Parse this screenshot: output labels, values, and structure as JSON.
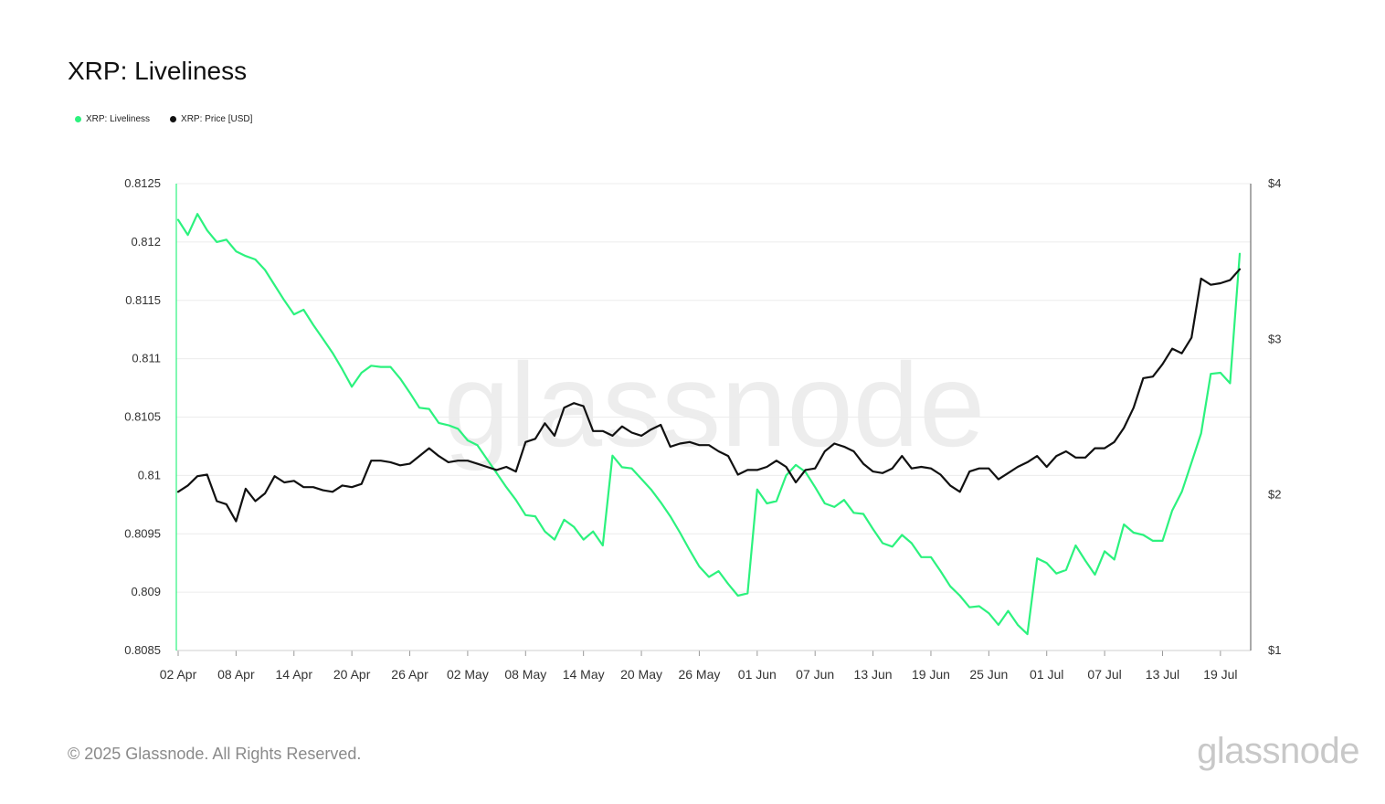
{
  "title": "XRP: Liveliness",
  "legend": [
    {
      "label": "XRP: Liveliness",
      "color": "#2cf27e"
    },
    {
      "label": "XRP: Price [USD]",
      "color": "#111111"
    }
  ],
  "footer": "© 2025 Glassnode. All Rights Reserved.",
  "brand": "glassnode",
  "watermark": "glassnode",
  "chart_data": {
    "type": "line",
    "x_ticks": [
      "02 Apr",
      "08 Apr",
      "14 Apr",
      "20 Apr",
      "26 Apr",
      "02 May",
      "08 May",
      "14 May",
      "20 May",
      "26 May",
      "01 Jun",
      "07 Jun",
      "13 Jun",
      "19 Jun",
      "25 Jun",
      "01 Jul",
      "07 Jul",
      "13 Jul",
      "19 Jul"
    ],
    "x_tick_offsets_days": [
      0,
      6,
      12,
      18,
      24,
      30,
      36,
      42,
      48,
      54,
      60,
      66,
      72,
      78,
      84,
      90,
      96,
      102,
      108
    ],
    "x_start": "2025-04-02",
    "x_days": 111,
    "y_left": {
      "ylim": [
        0.8085,
        0.8125
      ],
      "ticks": [
        "0.8085",
        "0.809",
        "0.8095",
        "0.81",
        "0.8105",
        "0.811",
        "0.8115",
        "0.812",
        "0.8125"
      ],
      "tick_values": [
        0.8085,
        0.809,
        0.8095,
        0.81,
        0.8105,
        0.811,
        0.8115,
        0.812,
        0.8125
      ]
    },
    "y_right": {
      "ylim": [
        1,
        4
      ],
      "ticks": [
        "$1",
        "$2",
        "$3",
        "$4"
      ],
      "tick_values": [
        1,
        2,
        3,
        4
      ]
    },
    "grid": true,
    "series": [
      {
        "name": "XRP: Liveliness",
        "axis": "left",
        "color": "#2cf27e",
        "values": [
          0.81219,
          0.81206,
          0.81224,
          0.8121,
          0.812,
          0.81202,
          0.81192,
          0.81188,
          0.81185,
          0.81176,
          0.81163,
          0.8115,
          0.81138,
          0.81142,
          0.81129,
          0.81117,
          0.81105,
          0.81091,
          0.81076,
          0.81088,
          0.81094,
          0.81093,
          0.81093,
          0.81083,
          0.81071,
          0.81058,
          0.81057,
          0.81045,
          0.81043,
          0.8104,
          0.8103,
          0.81026,
          0.81014,
          0.81002,
          0.8099,
          0.80979,
          0.80966,
          0.80965,
          0.80952,
          0.80945,
          0.80962,
          0.80956,
          0.80945,
          0.80952,
          0.8094,
          0.81017,
          0.81007,
          0.81006,
          0.80997,
          0.80988,
          0.80977,
          0.80965,
          0.80951,
          0.80936,
          0.80922,
          0.80913,
          0.80918,
          0.80907,
          0.80897,
          0.80899,
          0.80988,
          0.80976,
          0.80978,
          0.81,
          0.81009,
          0.81003,
          0.8099,
          0.80976,
          0.80973,
          0.80979,
          0.80968,
          0.80967,
          0.80954,
          0.80942,
          0.80939,
          0.80949,
          0.80942,
          0.8093,
          0.8093,
          0.80918,
          0.80905,
          0.80897,
          0.80887,
          0.80888,
          0.80882,
          0.80872,
          0.80884,
          0.80872,
          0.80864,
          0.80929,
          0.80925,
          0.80916,
          0.80919,
          0.8094,
          0.80927,
          0.80915,
          0.80935,
          0.80928,
          0.80958,
          0.80951,
          0.80949,
          0.80944,
          0.80944,
          0.8097,
          0.80986,
          0.81011,
          0.81036,
          0.81087,
          0.81088,
          0.81079,
          0.8119
        ]
      },
      {
        "name": "XRP: Price [USD]",
        "axis": "right",
        "color": "#111111",
        "values": [
          2.02,
          2.06,
          2.12,
          2.13,
          1.96,
          1.94,
          1.83,
          2.04,
          1.96,
          2.01,
          2.12,
          2.08,
          2.09,
          2.05,
          2.05,
          2.03,
          2.02,
          2.06,
          2.05,
          2.07,
          2.22,
          2.22,
          2.21,
          2.19,
          2.2,
          2.25,
          2.3,
          2.25,
          2.21,
          2.22,
          2.22,
          2.2,
          2.18,
          2.16,
          2.18,
          2.15,
          2.34,
          2.36,
          2.46,
          2.38,
          2.56,
          2.59,
          2.57,
          2.41,
          2.41,
          2.38,
          2.44,
          2.4,
          2.38,
          2.42,
          2.45,
          2.31,
          2.33,
          2.34,
          2.32,
          2.32,
          2.28,
          2.25,
          2.13,
          2.16,
          2.16,
          2.18,
          2.22,
          2.18,
          2.08,
          2.16,
          2.17,
          2.28,
          2.33,
          2.31,
          2.28,
          2.2,
          2.15,
          2.14,
          2.17,
          2.25,
          2.17,
          2.18,
          2.17,
          2.13,
          2.06,
          2.02,
          2.15,
          2.17,
          2.17,
          2.1,
          2.14,
          2.18,
          2.21,
          2.25,
          2.18,
          2.25,
          2.28,
          2.24,
          2.24,
          2.3,
          2.3,
          2.34,
          2.43,
          2.56,
          2.75,
          2.76,
          2.84,
          2.94,
          2.91,
          3.01,
          3.39,
          3.35,
          3.36,
          3.38,
          3.45
        ]
      }
    ]
  }
}
